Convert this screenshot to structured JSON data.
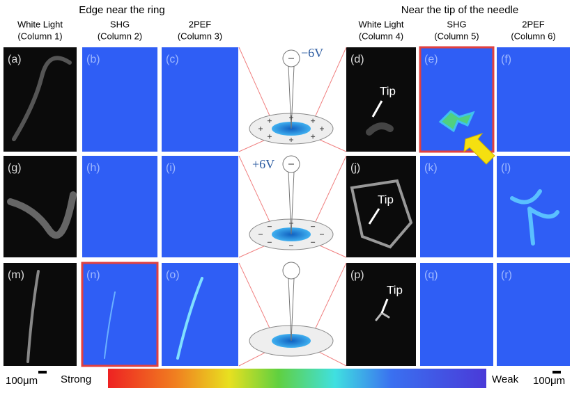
{
  "headers": [
    "Edge near the ring",
    "Near the tip of the needle"
  ],
  "columns": [
    {
      "name": "White Light",
      "number": "(Column 1)"
    },
    {
      "name": "SHG",
      "number": "(Column 2)"
    },
    {
      "name": "2PEF",
      "number": "(Column 3)"
    },
    {
      "name": "White Light",
      "number": "(Column 4)"
    },
    {
      "name": "SHG",
      "number": "(Column 5)"
    },
    {
      "name": "2PEF",
      "number": "(Column 6)"
    }
  ],
  "panels": [
    "(a)",
    "(b)",
    "(c)",
    "(d)",
    "(e)",
    "(f)",
    "(g)",
    "(h)",
    "(i)",
    "(j)",
    "(k)",
    "(l)",
    "(m)",
    "(n)",
    "(o)",
    "(p)",
    "(q)",
    "(r)"
  ],
  "voltages": [
    "−6V",
    "+6V"
  ],
  "tip_labels": [
    "Tip",
    "Tip",
    "Tip"
  ],
  "scale_bars": [
    "100μm",
    "100μm"
  ],
  "colorbar": {
    "strong": "Strong",
    "weak": "Weak"
  }
}
